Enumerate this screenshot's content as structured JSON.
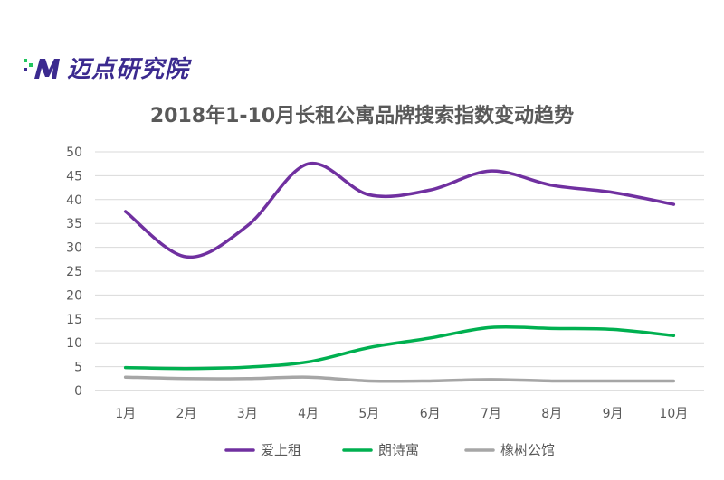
{
  "brand": {
    "name": "迈点研究院",
    "logo_accent": "#3b2a8f",
    "logo_highlight": "#22c55e"
  },
  "chart_data": {
    "type": "line",
    "title": "2018年1-10月长租公寓品牌搜索指数变动趋势",
    "categories": [
      "1月",
      "2月",
      "3月",
      "4月",
      "5月",
      "6月",
      "7月",
      "8月",
      "9月",
      "10月"
    ],
    "ylim": [
      0,
      50
    ],
    "yticks": [
      0,
      5,
      10,
      15,
      20,
      25,
      30,
      35,
      40,
      45,
      50
    ],
    "grid": true,
    "legend_position": "bottom",
    "series": [
      {
        "name": "爱上租",
        "color": "#7030a0",
        "values": [
          37.5,
          28,
          34.5,
          47.5,
          41,
          42,
          46,
          43,
          41.5,
          39
        ]
      },
      {
        "name": "朗诗寓",
        "color": "#00b050",
        "values": [
          4.8,
          4.6,
          4.9,
          6,
          9,
          11,
          13.2,
          13,
          12.8,
          11.5
        ]
      },
      {
        "name": "橡树公馆",
        "color": "#a6a6a6",
        "values": [
          2.8,
          2.5,
          2.5,
          2.8,
          2,
          2,
          2.3,
          2,
          2,
          2
        ]
      }
    ]
  }
}
